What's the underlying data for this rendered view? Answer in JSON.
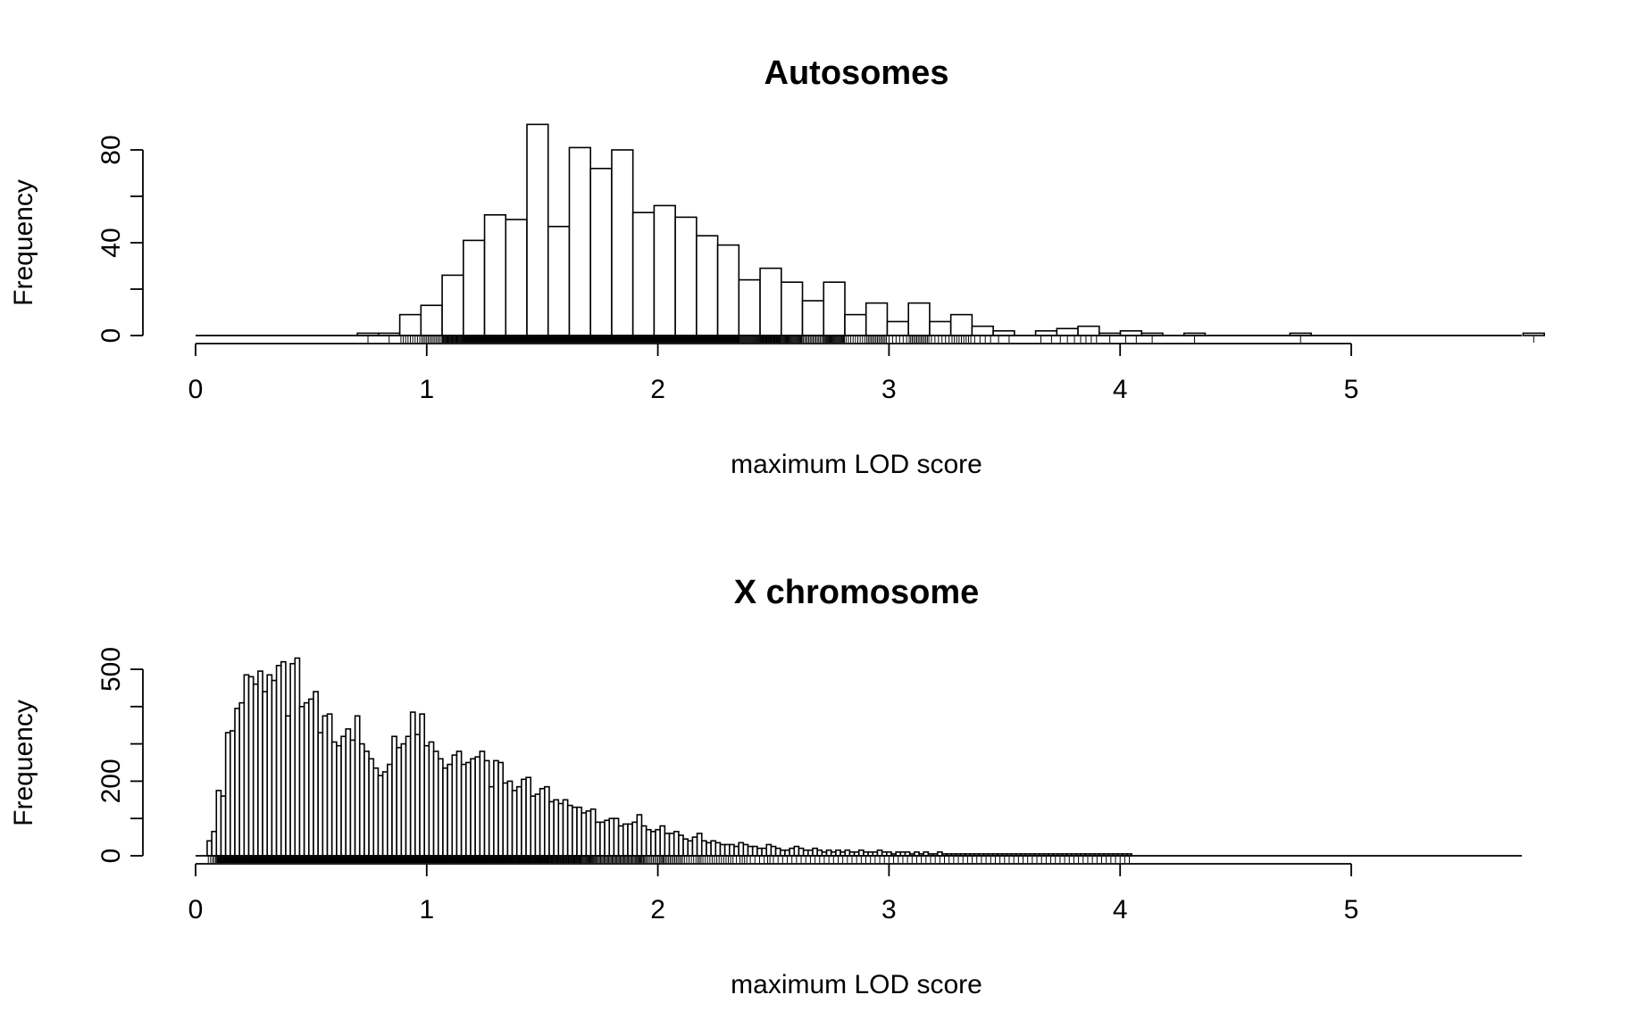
{
  "chart_data": [
    {
      "type": "bar",
      "title": "Autosomes",
      "xlabel": "maximum LOD score",
      "ylabel": "Frequency",
      "xlim": [
        0,
        5.75
      ],
      "ylim": [
        0,
        92
      ],
      "xticks": [
        "0",
        "1",
        "2",
        "3",
        "4",
        "5"
      ],
      "yticks": [
        "0",
        "40",
        "80"
      ],
      "bin_start": 0.7,
      "bin_width": 0.0917,
      "values": [
        1,
        1,
        9,
        13,
        26,
        41,
        52,
        50,
        91,
        47,
        81,
        72,
        80,
        53,
        56,
        51,
        43,
        39,
        24,
        29,
        23,
        15,
        23,
        9,
        14,
        6,
        14,
        6,
        9,
        4,
        2,
        0,
        2,
        3,
        4,
        1,
        2,
        1,
        0,
        1,
        0,
        0,
        0,
        0,
        1,
        0,
        0,
        0,
        0,
        0,
        0,
        0,
        0,
        0,
        0,
        1
      ],
      "grid": false,
      "rug": true
    },
    {
      "type": "bar",
      "title": "X chromosome",
      "xlabel": "maximum LOD score",
      "ylabel": "Frequency",
      "xlim": [
        0,
        5.75
      ],
      "ylim": [
        0,
        530
      ],
      "xticks": [
        "0",
        "1",
        "2",
        "3",
        "4",
        "5"
      ],
      "yticks": [
        "0",
        "200",
        "500"
      ],
      "bin_start": 0.05,
      "bin_width": 0.02,
      "values": [
        40,
        65,
        175,
        160,
        330,
        335,
        395,
        410,
        485,
        480,
        460,
        495,
        440,
        485,
        470,
        510,
        520,
        375,
        515,
        530,
        400,
        410,
        420,
        440,
        330,
        375,
        380,
        305,
        295,
        320,
        340,
        310,
        375,
        300,
        280,
        260,
        235,
        215,
        225,
        245,
        320,
        290,
        300,
        320,
        385,
        325,
        380,
        295,
        305,
        280,
        260,
        235,
        245,
        270,
        280,
        245,
        250,
        260,
        265,
        280,
        255,
        185,
        255,
        250,
        195,
        200,
        175,
        185,
        205,
        210,
        160,
        165,
        180,
        185,
        145,
        150,
        140,
        150,
        135,
        130,
        130,
        115,
        120,
        125,
        90,
        90,
        95,
        100,
        100,
        80,
        85,
        85,
        90,
        110,
        80,
        70,
        65,
        70,
        80,
        60,
        60,
        65,
        55,
        45,
        40,
        50,
        60,
        40,
        35,
        40,
        35,
        30,
        30,
        30,
        25,
        35,
        30,
        25,
        25,
        20,
        20,
        30,
        25,
        20,
        15,
        15,
        20,
        25,
        20,
        15,
        15,
        20,
        15,
        10,
        15,
        10,
        15,
        10,
        15,
        10,
        10,
        15,
        10,
        10,
        10,
        15,
        10,
        10,
        5,
        10,
        10,
        10,
        5,
        10,
        5,
        10,
        5,
        5,
        10,
        5,
        5,
        5,
        5,
        5,
        5,
        5,
        5,
        5,
        5,
        5,
        5,
        5,
        5,
        5,
        5,
        5,
        5,
        5,
        5,
        5,
        5,
        5,
        5,
        5,
        5,
        5,
        5,
        5,
        5,
        5,
        5,
        5,
        5,
        5,
        5,
        5,
        5,
        5,
        5,
        5
      ],
      "grid": false,
      "rug": true
    }
  ]
}
